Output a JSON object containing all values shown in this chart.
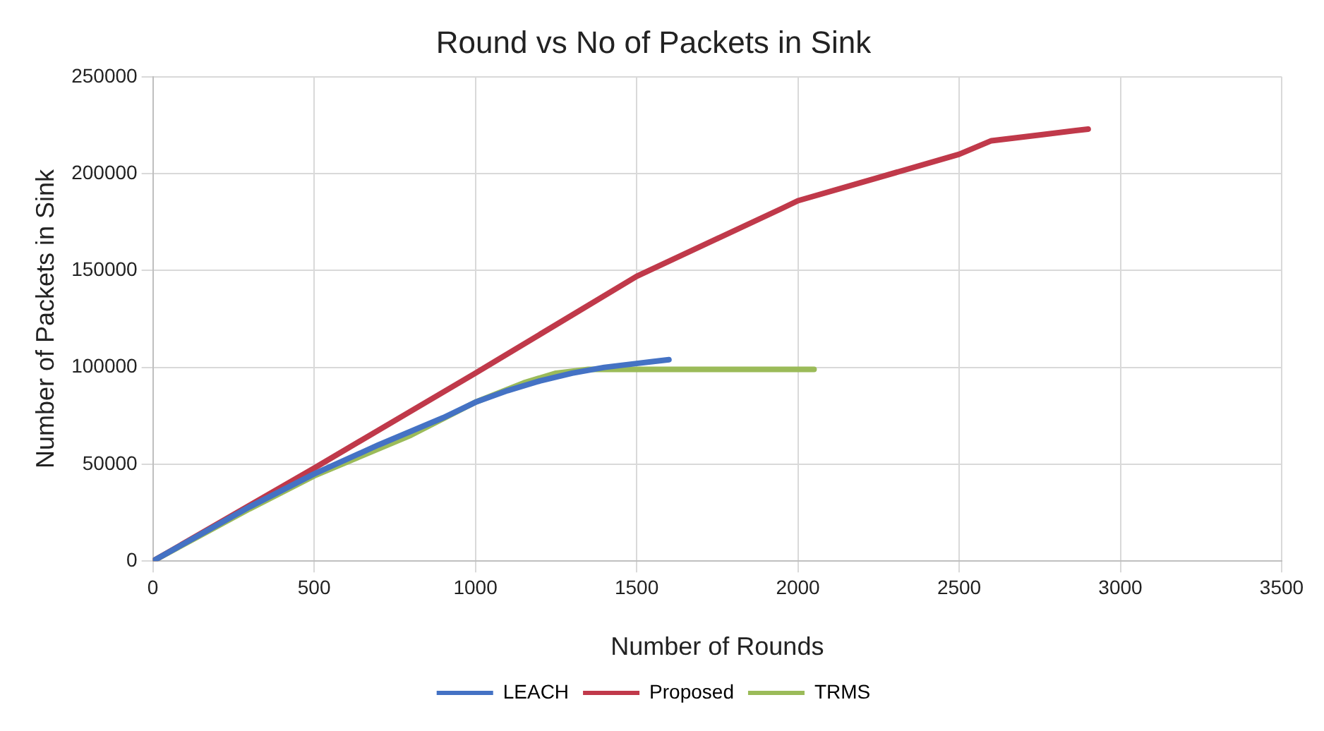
{
  "chart_data": {
    "type": "line",
    "title": "Round vs No of Packets in Sink",
    "xlabel": "Number of Rounds",
    "ylabel": "Number of Packets in Sink",
    "xlim": [
      0,
      3500
    ],
    "xticks": [
      0,
      500,
      1000,
      1500,
      2000,
      2500,
      3000,
      3500
    ],
    "ylim": [
      0,
      250000
    ],
    "yticks": [
      0,
      50000,
      100000,
      150000,
      200000,
      250000
    ],
    "grid": true,
    "legend": "bottom",
    "marker": "none",
    "line_style": "solid",
    "series": [
      {
        "name": "LEACH",
        "color": "#4472c4",
        "x": [
          0,
          300,
          500,
          700,
          900,
          1000,
          1100,
          1200,
          1300,
          1400,
          1500,
          1600
        ],
        "values": [
          0,
          28000,
          45000,
          60000,
          74000,
          82000,
          88000,
          93000,
          97000,
          100000,
          102000,
          104000
        ]
      },
      {
        "name": "Proposed",
        "color": "#c0394a",
        "x": [
          0,
          500,
          1000,
          1500,
          1950,
          2000,
          2250,
          2500,
          2600,
          2750,
          2900
        ],
        "values": [
          0,
          48000,
          97000,
          147000,
          182000,
          186000,
          198000,
          210000,
          217000,
          220000,
          223000
        ]
      },
      {
        "name": "TRMS",
        "color": "#9bbb59",
        "x": [
          0,
          300,
          500,
          800,
          1000,
          1150,
          1250,
          1350,
          1500,
          1700,
          2050
        ],
        "values": [
          0,
          27000,
          44000,
          65000,
          82000,
          92000,
          97000,
          99000,
          99000,
          99000,
          99000
        ]
      }
    ]
  }
}
